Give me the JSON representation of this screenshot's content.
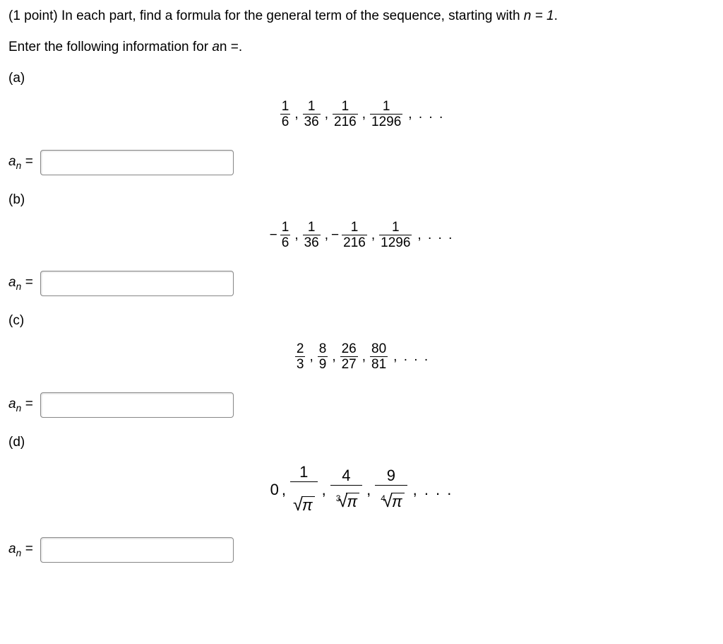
{
  "points": "(1 point)",
  "intro_line1": "In each part, find a formula for the general term of the sequence, starting with ",
  "n_eq": "n = 1",
  "intro_line2_prefix": "Enter the following information for ",
  "intro_line2_var": "a",
  "intro_line2_sub": "n",
  "intro_line2_suffix": " =.",
  "answer_label_var": "a",
  "answer_label_sub": "n",
  "answer_label_eq": " =",
  "ellipsis": ", . . .",
  "parts": {
    "a": {
      "label": "(a)",
      "terms": [
        {
          "num": "1",
          "den": "6"
        },
        {
          "num": "1",
          "den": "36"
        },
        {
          "num": "1",
          "den": "216"
        },
        {
          "num": "1",
          "den": "1296"
        }
      ]
    },
    "b": {
      "label": "(b)",
      "terms": [
        {
          "sign": "−",
          "num": "1",
          "den": "6"
        },
        {
          "num": "1",
          "den": "36"
        },
        {
          "sign": "−",
          "num": "1",
          "den": "216"
        },
        {
          "num": "1",
          "den": "1296"
        }
      ]
    },
    "c": {
      "label": "(c)",
      "terms": [
        {
          "num": "2",
          "den": "3"
        },
        {
          "num": "8",
          "den": "9"
        },
        {
          "num": "26",
          "den": "27"
        },
        {
          "num": "80",
          "den": "81"
        }
      ]
    },
    "d": {
      "label": "(d)",
      "leading": "0",
      "terms": [
        {
          "num": "1",
          "root_index": "",
          "radicand": "π"
        },
        {
          "num": "4",
          "root_index": "3",
          "radicand": "π"
        },
        {
          "num": "9",
          "root_index": "4",
          "radicand": "π"
        }
      ]
    }
  }
}
